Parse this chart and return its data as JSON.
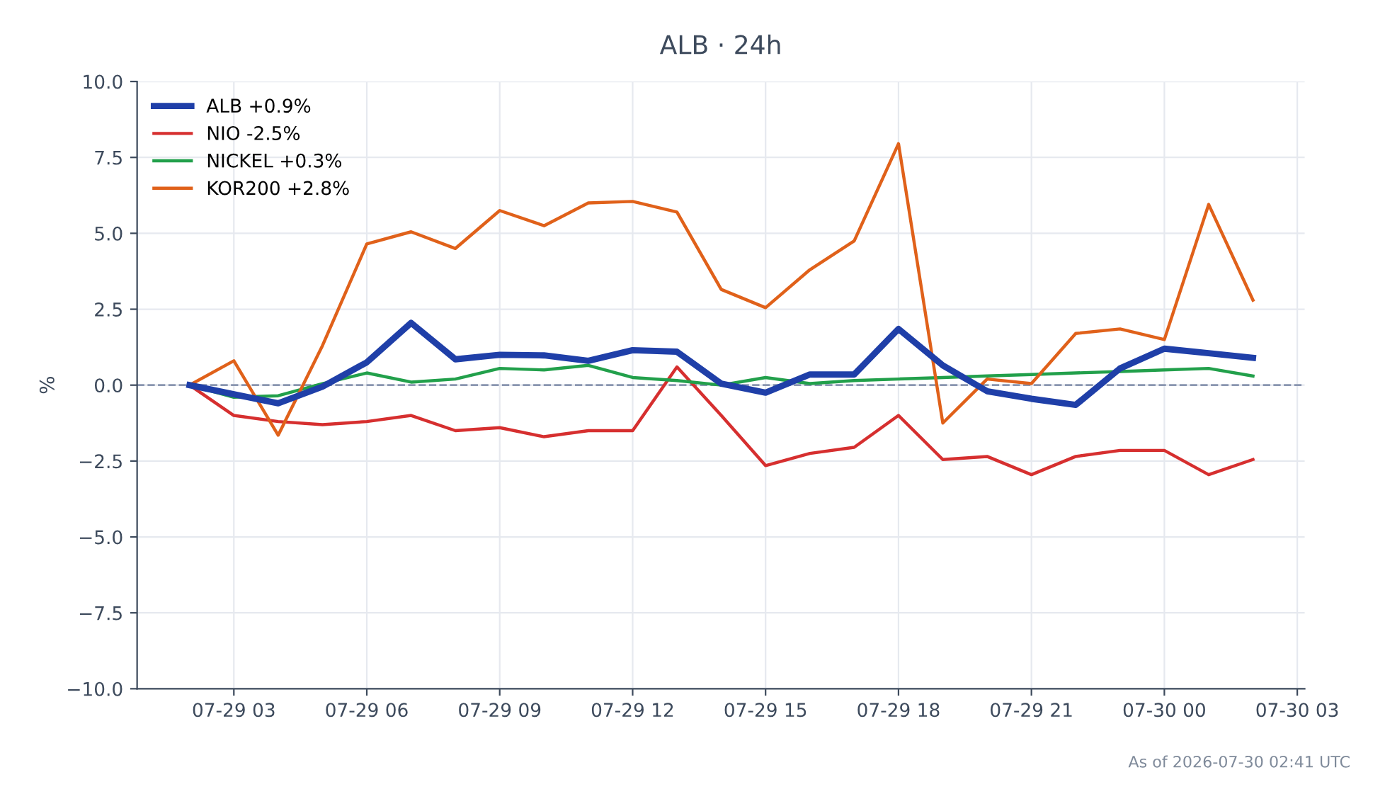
{
  "chart_data": {
    "type": "line",
    "title": "ALB · 24h",
    "ylabel": "%",
    "x": [
      "2026-07-29T02:00",
      "2026-07-29T03:00",
      "2026-07-29T04:00",
      "2026-07-29T05:00",
      "2026-07-29T06:00",
      "2026-07-29T07:00",
      "2026-07-29T08:00",
      "2026-07-29T09:00",
      "2026-07-29T10:00",
      "2026-07-29T11:00",
      "2026-07-29T12:00",
      "2026-07-29T13:00",
      "2026-07-29T14:00",
      "2026-07-29T15:00",
      "2026-07-29T16:00",
      "2026-07-29T17:00",
      "2026-07-29T18:00",
      "2026-07-29T19:00",
      "2026-07-29T20:00",
      "2026-07-29T21:00",
      "2026-07-29T22:00",
      "2026-07-29T23:00",
      "2026-07-30T00:00",
      "2026-07-30T01:00",
      "2026-07-30T02:00"
    ],
    "series": [
      {
        "name": "ALB +0.9%",
        "color": "#1f3fa8",
        "values": [
          0,
          -0.3,
          -0.6,
          -0.05,
          0.75,
          2.05,
          0.85,
          1.0,
          0.98,
          0.8,
          1.15,
          1.1,
          0.05,
          -0.25,
          0.35,
          0.35,
          1.85,
          0.65,
          -0.2,
          -0.45,
          -0.65,
          0.55,
          1.2,
          1.05,
          0.9
        ]
      },
      {
        "name": "NIO -2.5%",
        "color": "#d62f2f",
        "values": [
          0,
          -1.0,
          -1.2,
          -1.3,
          -1.2,
          -1.0,
          -1.5,
          -1.4,
          -1.7,
          -1.5,
          -1.5,
          0.6,
          -1.0,
          -2.65,
          -2.25,
          -2.05,
          -1.0,
          -2.45,
          -2.35,
          -2.95,
          -2.35,
          -2.15,
          -2.15,
          -2.95,
          -2.45
        ]
      },
      {
        "name": "NICKEL +0.3%",
        "color": "#22a04b",
        "values": [
          0,
          -0.4,
          -0.35,
          0.05,
          0.4,
          0.1,
          0.2,
          0.55,
          0.5,
          0.65,
          0.25,
          0.15,
          0.0,
          0.25,
          0.05,
          0.15,
          0.2,
          0.25,
          0.3,
          0.35,
          0.4,
          0.45,
          0.5,
          0.55,
          0.3
        ]
      },
      {
        "name": "KOR200 +2.8%",
        "color": "#e0611a",
        "values": [
          0,
          0.8,
          -1.65,
          1.3,
          4.65,
          5.05,
          4.5,
          5.75,
          5.25,
          6.0,
          6.05,
          5.7,
          3.15,
          2.55,
          3.8,
          4.75,
          7.95,
          -1.25,
          0.2,
          0.05,
          1.7,
          1.85,
          1.5,
          5.95,
          2.8
        ]
      }
    ],
    "xlim": [
      "2026-07-29T00:49",
      "2026-07-30T03:10"
    ],
    "xticks": [
      {
        "value": "2026-07-29T03:00",
        "label": "07-29 03"
      },
      {
        "value": "2026-07-29T06:00",
        "label": "07-29 06"
      },
      {
        "value": "2026-07-29T09:00",
        "label": "07-29 09"
      },
      {
        "value": "2026-07-29T12:00",
        "label": "07-29 12"
      },
      {
        "value": "2026-07-29T15:00",
        "label": "07-29 15"
      },
      {
        "value": "2026-07-29T18:00",
        "label": "07-29 18"
      },
      {
        "value": "2026-07-29T21:00",
        "label": "07-29 21"
      },
      {
        "value": "2026-07-30T00:00",
        "label": "07-30 00"
      },
      {
        "value": "2026-07-30T03:00",
        "label": "07-30 03"
      }
    ],
    "ylim": [
      -10,
      10
    ],
    "yticks": [
      {
        "value": -10,
        "label": "−10.0"
      },
      {
        "value": -7.5,
        "label": "−7.5"
      },
      {
        "value": -5,
        "label": "−5.0"
      },
      {
        "value": -2.5,
        "label": "−2.5"
      },
      {
        "value": 0,
        "label": "0.0"
      },
      {
        "value": 2.5,
        "label": "2.5"
      },
      {
        "value": 5,
        "label": "5.0"
      },
      {
        "value": 7.5,
        "label": "7.5"
      },
      {
        "value": 10,
        "label": "10.0"
      }
    ],
    "ref_lines": [
      {
        "axis": "y",
        "value": 0,
        "color": "#8a96b0",
        "line_style": "dashed"
      }
    ],
    "grid": true,
    "legend": "top left",
    "marker": "none",
    "line_style": "solid",
    "annotations": [
      "As of 2026-07-30 02:41 UTC"
    ]
  }
}
